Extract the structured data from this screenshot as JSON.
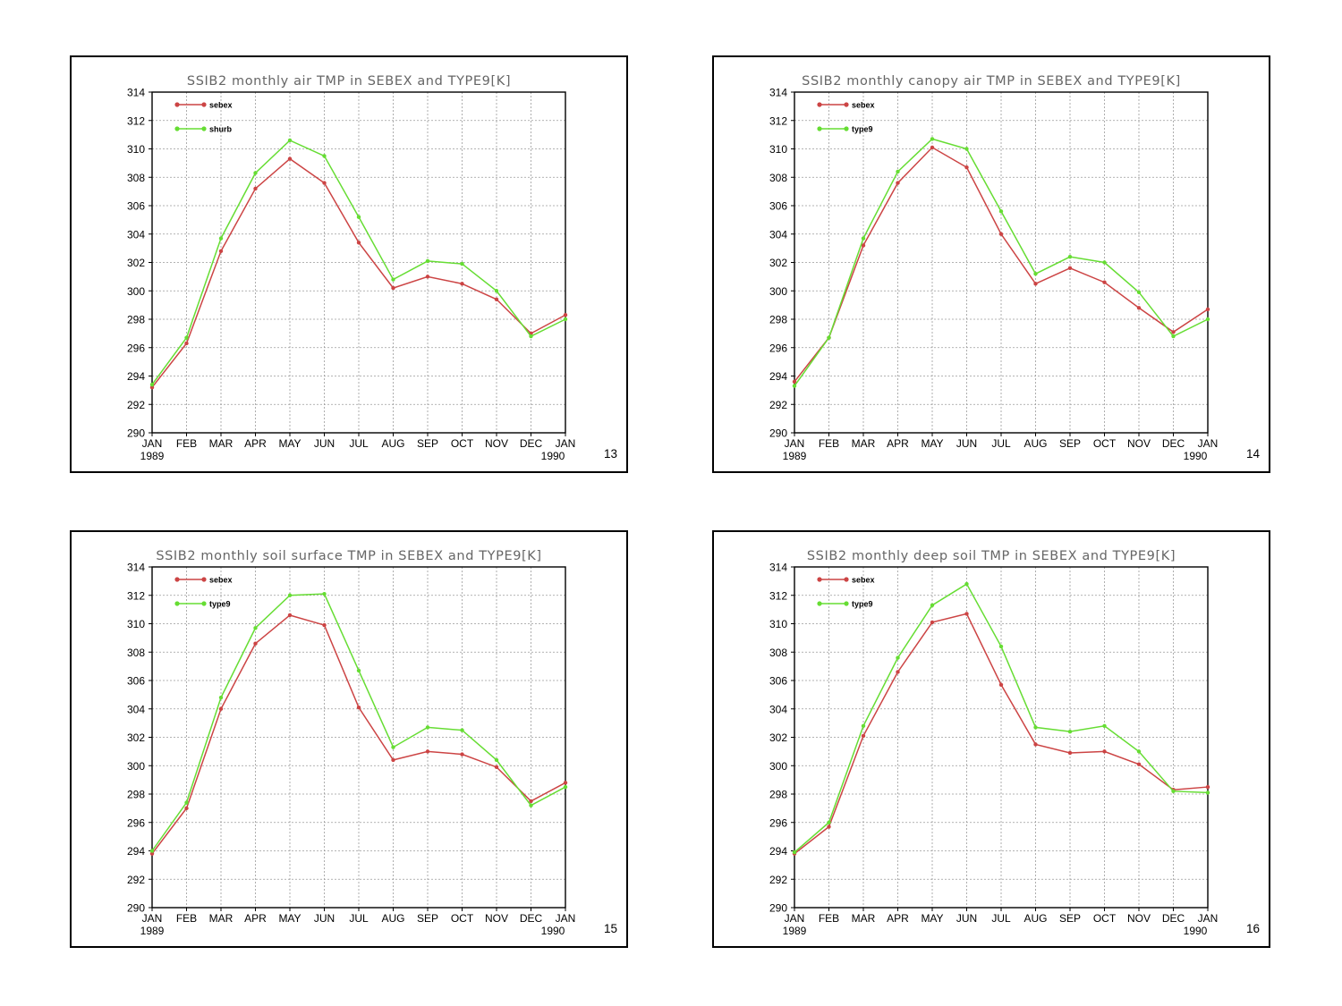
{
  "chart_data": [
    {
      "type": "line",
      "title": "SSIB2 monthly air TMP in SEBEX and TYPE9[K]",
      "page_number": "13",
      "categories": [
        "JAN\n1989",
        "FEB",
        "MAR",
        "APR",
        "MAY",
        "JUN",
        "JUL",
        "AUG",
        "SEP",
        "OCT",
        "NOV",
        "DEC",
        "JAN\n1990"
      ],
      "ylim": [
        290,
        314
      ],
      "yticks": [
        290,
        292,
        294,
        296,
        298,
        300,
        302,
        304,
        306,
        308,
        310,
        312,
        314
      ],
      "grid": true,
      "legend_position": "top-left",
      "series": [
        {
          "name": "sebex",
          "color": "#cc4444",
          "values": [
            293.2,
            296.3,
            302.8,
            307.2,
            309.3,
            307.6,
            303.4,
            300.2,
            301.0,
            300.5,
            299.4,
            297.0,
            298.3
          ]
        },
        {
          "name": "shurb",
          "color": "#66dd33",
          "values": [
            293.4,
            296.7,
            303.7,
            308.3,
            310.6,
            309.5,
            305.2,
            300.8,
            302.1,
            301.9,
            300.0,
            296.8,
            298.0
          ]
        }
      ]
    },
    {
      "type": "line",
      "title": "SSIB2 monthly canopy air TMP in SEBEX and TYPE9[K]",
      "page_number": "14",
      "categories": [
        "JAN\n1989",
        "FEB",
        "MAR",
        "APR",
        "MAY",
        "JUN",
        "JUL",
        "AUG",
        "SEP",
        "OCT",
        "NOV",
        "DEC",
        "JAN\n1990"
      ],
      "ylim": [
        290,
        314
      ],
      "yticks": [
        290,
        292,
        294,
        296,
        298,
        300,
        302,
        304,
        306,
        308,
        310,
        312,
        314
      ],
      "grid": true,
      "legend_position": "top-left",
      "series": [
        {
          "name": "sebex",
          "color": "#cc4444",
          "values": [
            293.6,
            296.7,
            303.2,
            307.6,
            310.1,
            308.7,
            304.0,
            300.5,
            301.6,
            300.6,
            298.8,
            297.1,
            298.7
          ]
        },
        {
          "name": "type9",
          "color": "#66dd33",
          "values": [
            293.3,
            296.7,
            303.7,
            308.4,
            310.7,
            310.0,
            305.6,
            301.2,
            302.4,
            302.0,
            299.9,
            296.8,
            298.0
          ]
        }
      ]
    },
    {
      "type": "line",
      "title": "SSIB2 monthly soil surface TMP in SEBEX and TYPE9[K]",
      "page_number": "15",
      "categories": [
        "JAN\n1989",
        "FEB",
        "MAR",
        "APR",
        "MAY",
        "JUN",
        "JUL",
        "AUG",
        "SEP",
        "OCT",
        "NOV",
        "DEC",
        "JAN\n1990"
      ],
      "ylim": [
        290,
        314
      ],
      "yticks": [
        290,
        292,
        294,
        296,
        298,
        300,
        302,
        304,
        306,
        308,
        310,
        312,
        314
      ],
      "grid": true,
      "legend_position": "top-left",
      "series": [
        {
          "name": "sebex",
          "color": "#cc4444",
          "values": [
            293.8,
            297.0,
            304.0,
            308.6,
            310.6,
            309.9,
            304.1,
            300.4,
            301.0,
            300.8,
            299.9,
            297.5,
            298.8
          ]
        },
        {
          "name": "type9",
          "color": "#66dd33",
          "values": [
            294.0,
            297.4,
            304.8,
            309.7,
            312.0,
            312.1,
            306.7,
            301.3,
            302.7,
            302.5,
            300.4,
            297.2,
            298.5
          ]
        }
      ]
    },
    {
      "type": "line",
      "title": "SSIB2 monthly deep soil TMP in SEBEX and TYPE9[K]",
      "page_number": "16",
      "categories": [
        "JAN\n1989",
        "FEB",
        "MAR",
        "APR",
        "MAY",
        "JUN",
        "JUL",
        "AUG",
        "SEP",
        "OCT",
        "NOV",
        "DEC",
        "JAN\n1990"
      ],
      "ylim": [
        290,
        314
      ],
      "yticks": [
        290,
        292,
        294,
        296,
        298,
        300,
        302,
        304,
        306,
        308,
        310,
        312,
        314
      ],
      "grid": true,
      "legend_position": "top-left",
      "series": [
        {
          "name": "sebex",
          "color": "#cc4444",
          "values": [
            293.8,
            295.7,
            302.1,
            306.6,
            310.1,
            310.7,
            305.7,
            301.5,
            300.9,
            301.0,
            300.1,
            298.3,
            298.5
          ]
        },
        {
          "name": "type9",
          "color": "#66dd33",
          "values": [
            293.9,
            296.0,
            302.8,
            307.6,
            311.3,
            312.8,
            308.4,
            302.7,
            302.4,
            302.8,
            301.0,
            298.2,
            298.1
          ]
        }
      ]
    }
  ]
}
